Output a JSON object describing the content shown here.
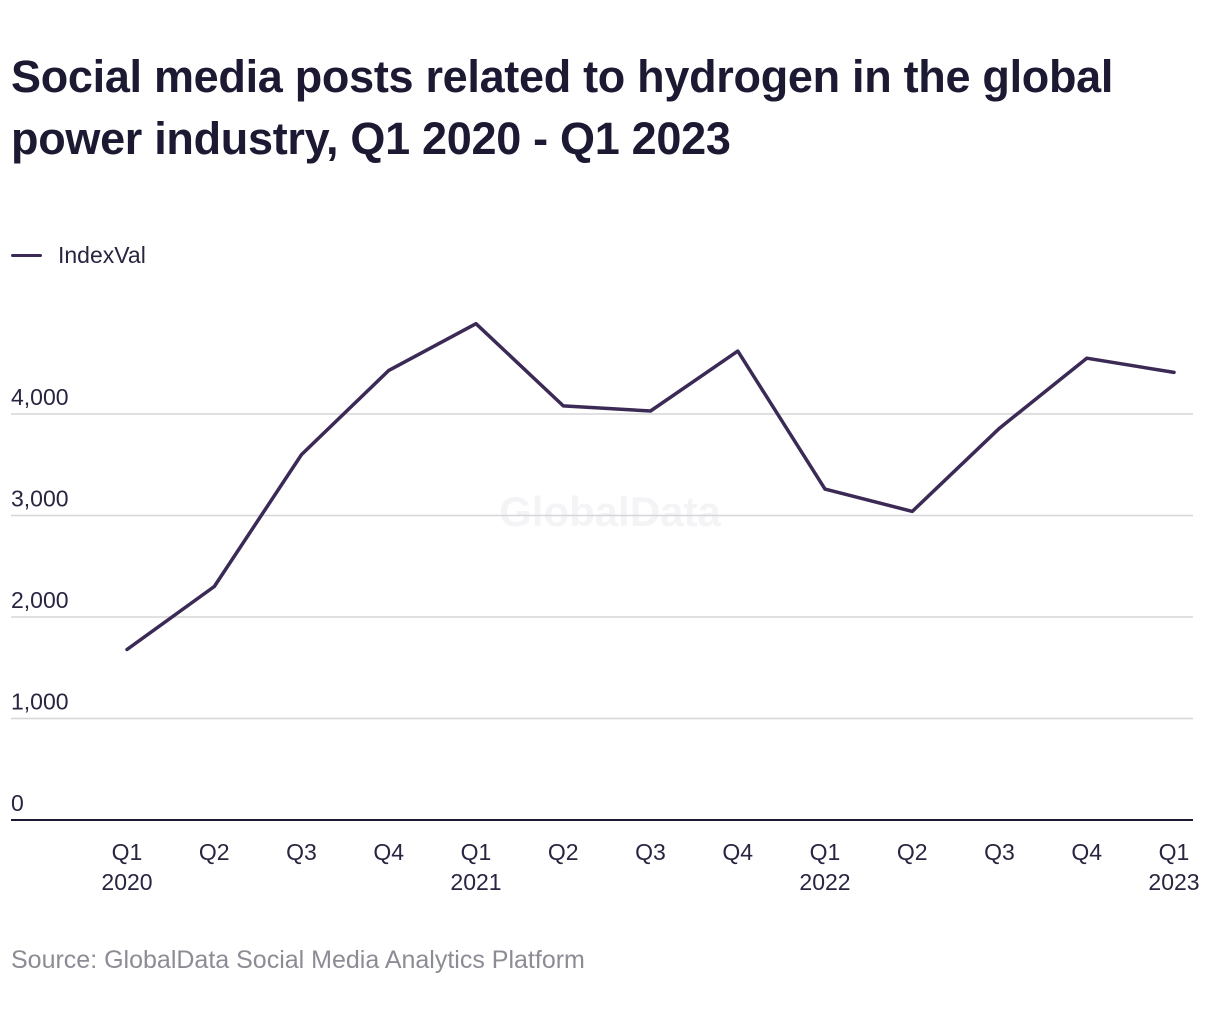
{
  "title": "Social media posts related to hydrogen in the global power industry, Q1 2020 - Q1 2023",
  "source": "Source: GlobalData Social Media Analytics Platform",
  "watermark": "GlobalData",
  "colors": {
    "line": "#3a2a55",
    "grid": "#d6d6d9",
    "axis": "#1c1a33"
  },
  "chart_data": {
    "type": "line",
    "title": "Social media posts related to hydrogen in the global power industry, Q1 2020 - Q1 2023",
    "xlabel": "",
    "ylabel": "",
    "ylim": [
      0,
      5000
    ],
    "yticks": [
      0,
      1000,
      2000,
      3000,
      4000
    ],
    "ytick_labels": [
      "0",
      "1,000",
      "2,000",
      "3,000",
      "4,000"
    ],
    "grid": true,
    "legend": "top-left",
    "categories": [
      [
        "Q1",
        "2020"
      ],
      [
        "Q2",
        ""
      ],
      [
        "Q3",
        ""
      ],
      [
        "Q4",
        ""
      ],
      [
        "Q1",
        "2021"
      ],
      [
        "Q2",
        ""
      ],
      [
        "Q3",
        ""
      ],
      [
        "Q4",
        ""
      ],
      [
        "Q1",
        "2022"
      ],
      [
        "Q2",
        ""
      ],
      [
        "Q3",
        ""
      ],
      [
        "Q4",
        ""
      ],
      [
        "Q1",
        "2023"
      ]
    ],
    "series": [
      {
        "name": "IndexVal",
        "values": [
          1680,
          2300,
          3600,
          4430,
          4890,
          4080,
          4030,
          4620,
          3260,
          3040,
          3860,
          4550,
          4410
        ]
      }
    ]
  }
}
